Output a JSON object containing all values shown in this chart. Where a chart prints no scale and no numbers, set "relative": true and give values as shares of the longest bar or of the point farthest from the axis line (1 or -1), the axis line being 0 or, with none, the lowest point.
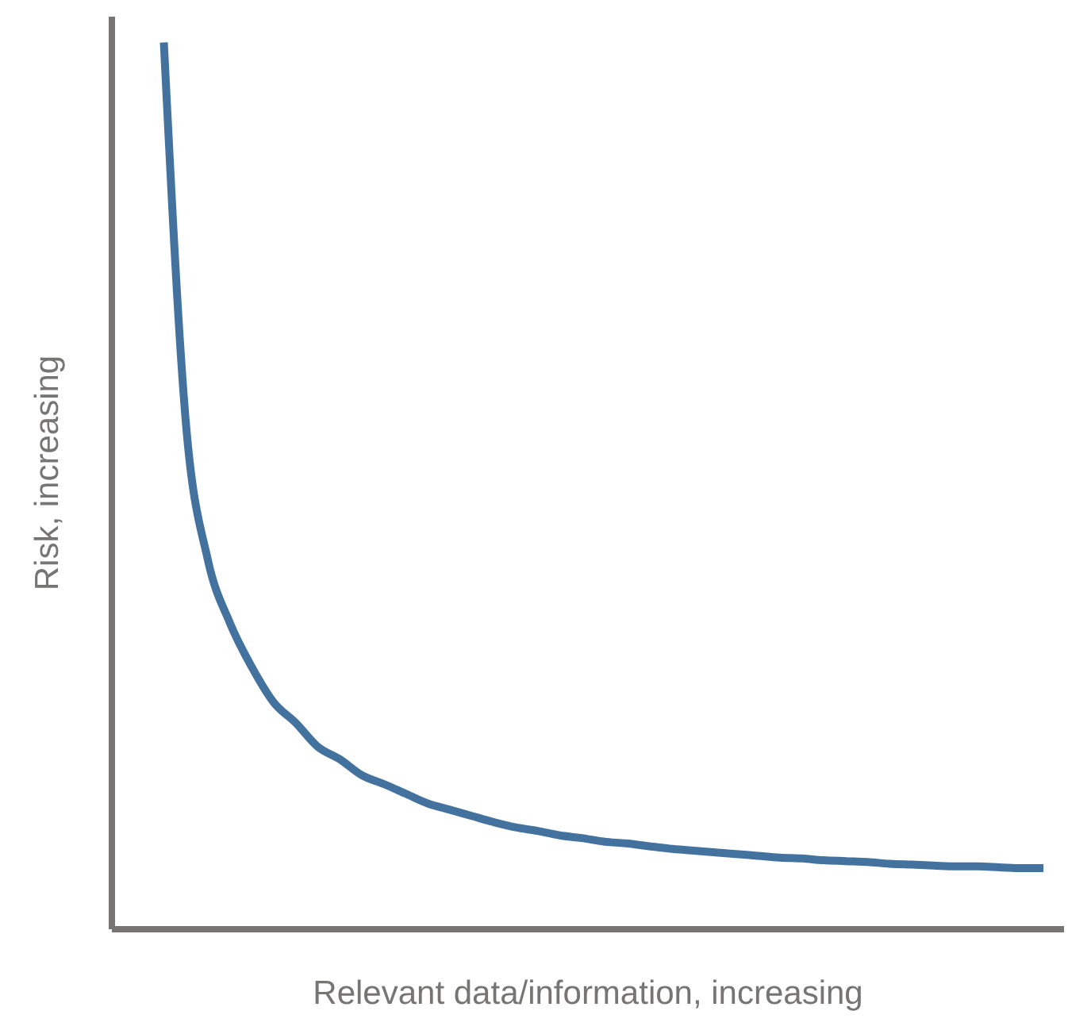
{
  "chart_data": {
    "type": "line",
    "relative": true,
    "xlabel": "Relevant data/information, increasing",
    "ylabel": "Risk, increasing",
    "grid": false,
    "marker": "none",
    "line_style": "solid",
    "categories": [
      null,
      null,
      null,
      null,
      null,
      null,
      null,
      null,
      null,
      null,
      null,
      null,
      null,
      null,
      null,
      null,
      null,
      null,
      null,
      null,
      null,
      null,
      null,
      null,
      null,
      null,
      null,
      null,
      null,
      null,
      null,
      null,
      null,
      null,
      null,
      null,
      null,
      null,
      null,
      null,
      null
    ],
    "series": [
      {
        "color": "#44729f",
        "values": [
          1.0,
          0.571,
          0.416,
          0.345,
          0.295,
          0.255,
          0.232,
          0.205,
          0.191,
          0.173,
          0.163,
          0.152,
          0.141,
          0.134,
          0.127,
          0.12,
          0.114,
          0.11,
          0.105,
          0.102,
          0.098,
          0.096,
          0.093,
          0.09,
          0.088,
          0.086,
          0.084,
          0.082,
          0.08,
          0.079,
          0.077,
          0.076,
          0.075,
          0.073,
          0.072,
          0.071,
          0.07,
          0.07,
          0.069,
          0.068,
          0.068
        ]
      }
    ]
  }
}
